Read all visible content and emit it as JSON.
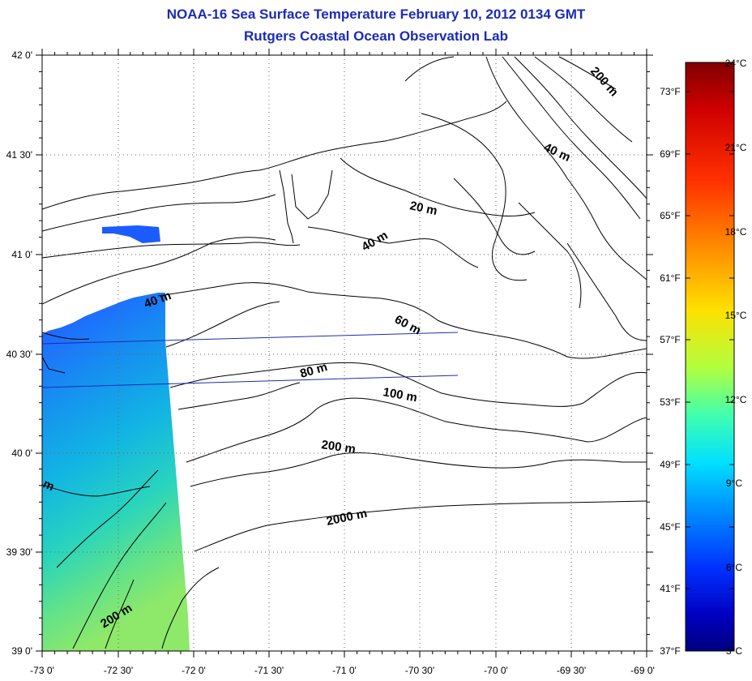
{
  "title": "NOAA-16 Sea Surface Temperature February 10, 2012 0134 GMT",
  "subtitle": "Rutgers Coastal Ocean Observation Lab",
  "axes": {
    "lat_labels": [
      "42 0'",
      "41 30'",
      "41 0'",
      "40 30'",
      "40 0'",
      "39 30'",
      "39 0'"
    ],
    "lon_labels": [
      "-73 0'",
      "-72 30'",
      "-72 0'",
      "-71 30'",
      "-71 0'",
      "-70 30'",
      "-70 0'",
      "-69 30'",
      "-69 0'"
    ]
  },
  "colorbar": {
    "celsius": [
      "24°C",
      "21°C",
      "18°C",
      "15°C",
      "12°C",
      "9°C",
      "6°C",
      "3°C"
    ],
    "fahrenheit": [
      "73°F",
      "69°F",
      "65°F",
      "61°F",
      "57°F",
      "53°F",
      "49°F",
      "45°F",
      "41°F",
      "37°F"
    ],
    "stops": [
      "#800000",
      "#d00000",
      "#ff3000",
      "#ff9000",
      "#ffe000",
      "#b0ff40",
      "#40ffb0",
      "#00e0ff",
      "#0090ff",
      "#0030ff",
      "#0000c0",
      "#000080"
    ]
  },
  "contour_labels": [
    "200 m",
    "40 m",
    "20 m",
    "40 m",
    "40 m",
    "60 m",
    "80 m",
    "100 m",
    "200 m",
    "2000 m",
    "200 m",
    "m"
  ]
}
